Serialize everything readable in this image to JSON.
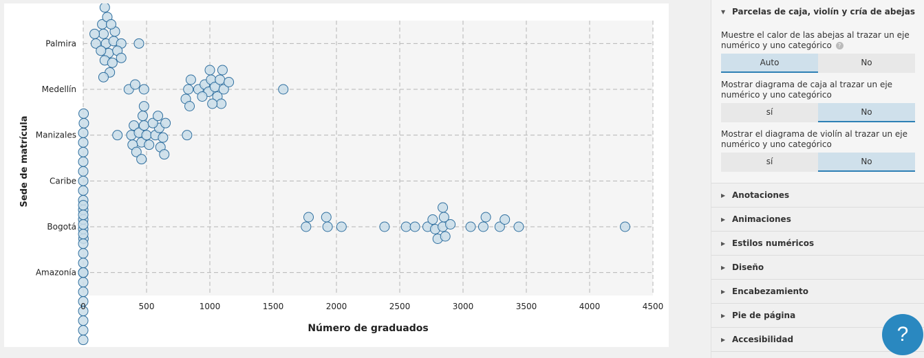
{
  "chart_data": {
    "type": "scatter",
    "title": "",
    "xlabel": "Número de graduados",
    "ylabel": "Sede de matrícula",
    "xlim": [
      0,
      4500
    ],
    "xticks": [
      0,
      500,
      1000,
      1500,
      2000,
      2500,
      3000,
      3500,
      4000,
      4500
    ],
    "categories": [
      "Palmira",
      "Medellín",
      "Manizales",
      "Caribe",
      "Bogotá",
      "Amazonía"
    ],
    "grid": true,
    "series": [
      {
        "category": "Palmira",
        "x": [
          100,
          180,
          240,
          300,
          160,
          200,
          250,
          90,
          140,
          170,
          270,
          230,
          150,
          190,
          300,
          210,
          440,
          170,
          160,
          220
        ]
      },
      {
        "category": "Medellín",
        "x": [
          360,
          410,
          480,
          830,
          850,
          810,
          910,
          960,
          990,
          1010,
          1040,
          1060,
          1080,
          1090,
          1110,
          1150,
          1580,
          840,
          1020,
          940,
          1000,
          1100
        ]
      },
      {
        "category": "Manizales",
        "x": [
          270,
          380,
          400,
          440,
          460,
          480,
          500,
          520,
          570,
          600,
          630,
          650,
          820,
          390,
          420,
          470,
          550,
          610,
          640,
          460,
          480,
          590
        ]
      },
      {
        "category": "Caribe",
        "x": [
          0,
          0,
          0,
          0,
          0,
          0,
          0,
          0,
          0,
          0,
          0,
          5,
          2,
          3
        ]
      },
      {
        "category": "Bogotá",
        "x": [
          1760,
          1780,
          1930,
          1920,
          2040,
          2380,
          2550,
          2620,
          2720,
          2760,
          2780,
          2800,
          2840,
          2850,
          2860,
          2900,
          2840,
          3060,
          3160,
          3180,
          3290,
          3330,
          3440,
          4280
        ]
      },
      {
        "category": "Amazonía",
        "x": [
          0,
          0,
          0,
          0,
          0,
          0,
          0,
          0,
          0,
          0,
          0,
          0,
          0,
          0,
          0,
          0,
          0,
          0,
          0,
          0
        ]
      }
    ],
    "colors": {
      "point_fill": "#c9dde9",
      "point_stroke": "#2f6f9f",
      "grid": "#b5b5b5",
      "plot_bg": "#f5f5f5"
    }
  },
  "sidebar": {
    "open_section": {
      "title": "Parcelas de caja, violín y cría de abejas",
      "settings": [
        {
          "label": "Muestre el calor de las abejas al trazar un eje numérico y uno categórico",
          "options": [
            "Auto",
            "No"
          ],
          "active": 0
        },
        {
          "label": "Mostrar diagrama de caja al trazar un eje numérico y uno categórico",
          "options": [
            "sí",
            "No"
          ],
          "active": 1
        },
        {
          "label": "Mostrar el diagrama de violín al trazar un eje numérico y uno categórico",
          "options": [
            "sí",
            "No"
          ],
          "active": 1
        }
      ]
    },
    "collapsed_sections": [
      "Anotaciones",
      "Animaciones",
      "Estilos numéricos",
      "Diseño",
      "Encabezamiento",
      "Pie de página",
      "Accesibilidad"
    ],
    "help_glyph": "?",
    "help_button_glyph": "?"
  }
}
